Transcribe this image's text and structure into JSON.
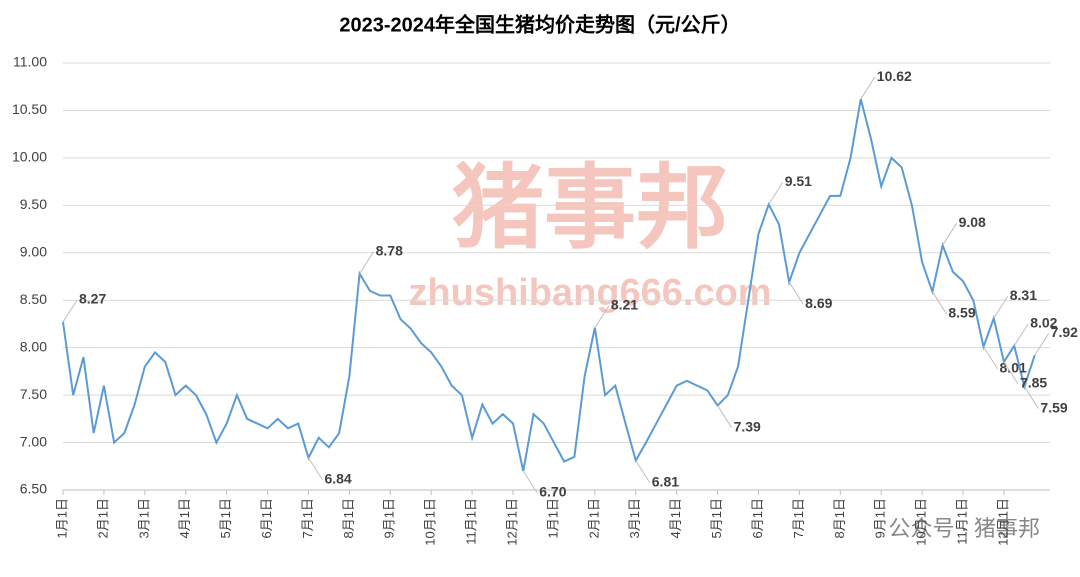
{
  "chart_data": {
    "type": "line",
    "title": "2023-2024年全国生猪均价走势图（元/公斤）",
    "watermark": "猪事邦",
    "watermark_url": "zhushibang666.com",
    "source": "公众号 · 猪事邦",
    "categories": [
      "1月1日",
      null,
      null,
      null,
      "2月1日",
      null,
      null,
      null,
      "3月1日",
      null,
      null,
      null,
      "4月1日",
      null,
      null,
      null,
      "5月1日",
      null,
      null,
      null,
      "6月1日",
      null,
      null,
      null,
      "7月1日",
      null,
      null,
      null,
      "8月1日",
      null,
      null,
      null,
      "9月1日",
      null,
      null,
      null,
      "10月1日",
      null,
      null,
      null,
      "11月1日",
      null,
      null,
      null,
      "12月1日",
      null,
      null,
      null,
      "1月1日",
      null,
      null,
      null,
      "2月1日",
      null,
      null,
      null,
      "3月1日",
      null,
      null,
      null,
      "4月1日",
      null,
      null,
      null,
      "5月1日",
      null,
      null,
      null,
      "6月1日",
      null,
      null,
      null,
      "7月1日",
      null,
      null,
      null,
      "8月1日",
      null,
      null,
      null,
      "9月1日",
      null,
      null,
      null,
      "10月1日",
      null,
      null,
      null,
      "11月1日",
      null,
      null,
      null,
      "12月1日",
      null,
      null,
      null
    ],
    "series": [
      {
        "name": "全国生猪均价",
        "color": "#5b9bd5",
        "values": [
          8.27,
          7.5,
          7.9,
          7.1,
          7.6,
          7.0,
          7.1,
          7.4,
          7.8,
          7.95,
          7.85,
          7.5,
          7.6,
          7.5,
          7.3,
          7.0,
          7.2,
          7.5,
          7.25,
          7.2,
          7.15,
          7.25,
          7.15,
          7.2,
          6.84,
          7.05,
          6.95,
          7.1,
          7.7,
          8.78,
          8.6,
          8.55,
          8.55,
          8.3,
          8.2,
          8.05,
          7.95,
          7.8,
          7.6,
          7.5,
          7.05,
          7.4,
          7.2,
          7.3,
          7.2,
          6.7,
          7.3,
          7.2,
          7.0,
          6.8,
          6.85,
          7.7,
          8.21,
          7.5,
          7.6,
          7.2,
          6.81,
          7.0,
          7.2,
          7.4,
          7.6,
          7.65,
          7.6,
          7.55,
          7.39,
          7.5,
          7.8,
          8.5,
          9.2,
          9.51,
          9.3,
          8.69,
          9.0,
          9.2,
          9.4,
          9.6,
          9.6,
          10.0,
          10.62,
          10.2,
          9.7,
          10.0,
          9.9,
          9.5,
          8.9,
          8.59,
          9.08,
          8.8,
          8.7,
          8.5,
          8.01,
          8.31,
          7.85,
          8.02,
          7.59,
          7.92
        ],
        "value_labels": [
          "8.27",
          null,
          null,
          null,
          null,
          null,
          null,
          null,
          null,
          null,
          null,
          null,
          null,
          null,
          null,
          null,
          null,
          null,
          null,
          null,
          null,
          null,
          null,
          null,
          "6.84",
          null,
          null,
          null,
          null,
          "8.78",
          null,
          null,
          null,
          null,
          null,
          null,
          null,
          null,
          null,
          null,
          null,
          null,
          null,
          null,
          null,
          "6.70",
          null,
          null,
          null,
          null,
          null,
          null,
          "8.21",
          null,
          null,
          null,
          "6.81",
          null,
          null,
          null,
          null,
          null,
          null,
          null,
          "7.39",
          null,
          null,
          null,
          null,
          "9.51",
          null,
          "8.69",
          null,
          null,
          null,
          null,
          null,
          null,
          "10.62",
          null,
          null,
          null,
          null,
          null,
          null,
          "8.59",
          "9.08",
          null,
          null,
          null,
          "8.01",
          "8.31",
          "7.85",
          "8.02",
          "7.59",
          "7.92"
        ]
      }
    ],
    "ylim": [
      6.5,
      11
    ],
    "yticks": [
      {
        "value": 6.5,
        "label": "6.50"
      },
      {
        "value": 7,
        "label": "7.00"
      },
      {
        "value": 7.5,
        "label": "7.50"
      },
      {
        "value": 8,
        "label": "8.00"
      },
      {
        "value": 8.5,
        "label": "8.50"
      },
      {
        "value": 9,
        "label": "9.00"
      },
      {
        "value": 9.5,
        "label": "9.50"
      },
      {
        "value": 10,
        "label": "10.00"
      },
      {
        "value": 10.5,
        "label": "10.50"
      },
      {
        "value": 11,
        "label": "11.00"
      }
    ],
    "grid": true
  }
}
